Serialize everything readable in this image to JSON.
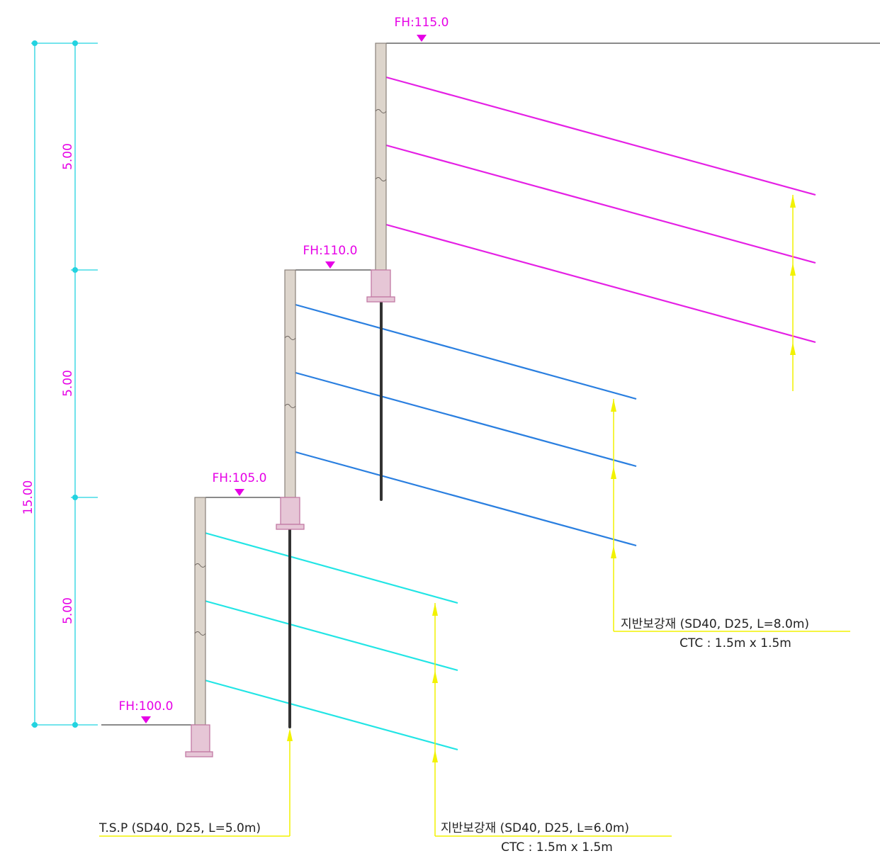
{
  "dimensions": {
    "stage1": "5.00",
    "stage2": "5.00",
    "stage3": "5.00",
    "total": "15.00"
  },
  "levels": {
    "fh100": "FH:100.0",
    "fh105": "FH:105.0",
    "fh110": "FH:110.0",
    "fh115": "FH:115.0"
  },
  "callouts": {
    "tsp": "T.S.P (SD40, D25, L=5.0m)",
    "reinf_6m": "지반보강재 (SD40, D25, L=6.0m)",
    "reinf_6m_ctc": "CTC : 1.5m x 1.5m",
    "reinf_8m": "지반보강재 (SD40, D25, L=8.0m)",
    "reinf_8m_ctc": "CTC : 1.5m x 1.5m"
  },
  "colors": {
    "dimension": "#22d3e0",
    "dimension_text": "#e600e6",
    "level_marker": "#e600e6",
    "anchor_tier1": "#22e5e5",
    "anchor_tier2": "#2a7fe0",
    "anchor_tier3": "#e520e5",
    "leader": "#f2f200",
    "wall_fill": "#ddd5cc",
    "footing_fill": "#e6c6d6",
    "tsp_bar": "#333333"
  }
}
